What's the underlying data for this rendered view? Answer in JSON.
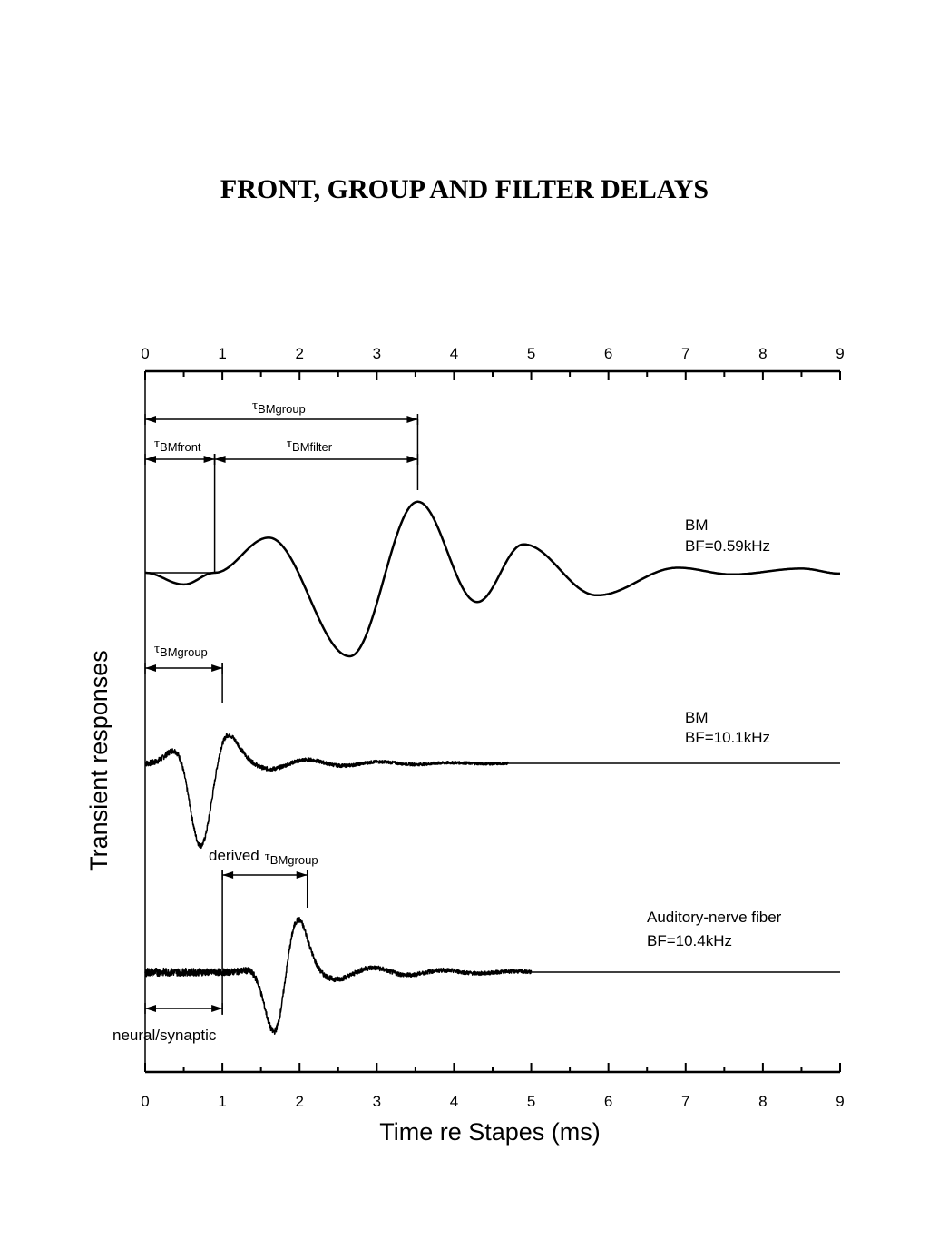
{
  "page": {
    "title": "FRONT, GROUP AND FILTER DELAYS"
  },
  "chart_data": {
    "type": "line",
    "title": "FRONT, GROUP AND FILTER DELAYS",
    "xlabel": "Time re Stapes (ms)",
    "ylabel": "Transient responses",
    "xlim": [
      0,
      9
    ],
    "x_ticks": [
      "0",
      "1",
      "2",
      "3",
      "4",
      "5",
      "6",
      "7",
      "8",
      "9"
    ],
    "grid": false,
    "series": [
      {
        "label_lines": [
          "BM",
          "BF=0.59kHz"
        ],
        "kind": "slow",
        "front_ms": 0.9,
        "peaks": [
          [
            0.0,
            0
          ],
          [
            0.5,
            -0.14
          ],
          [
            0.9,
            0
          ],
          [
            1.6,
            0.42
          ],
          [
            2.65,
            -1.0
          ],
          [
            3.53,
            0.85
          ],
          [
            4.3,
            -0.35
          ],
          [
            4.9,
            0.34
          ],
          [
            5.85,
            -0.27
          ],
          [
            6.9,
            0.06
          ],
          [
            7.6,
            -0.02
          ],
          [
            8.5,
            0.05
          ],
          [
            9.0,
            -0.01
          ]
        ]
      },
      {
        "label_lines": [
          "BM",
          "BF=10.1kHz"
        ],
        "kind": "fast",
        "freq_khz": 10.1,
        "envelope_peak_ms": 0.75,
        "noise_end_ms": 4.7
      },
      {
        "label_lines": [
          "Auditory-nerve fiber",
          "BF=10.4kHz"
        ],
        "kind": "fast",
        "freq_khz": 10.4,
        "envelope_peak_ms": 1.8,
        "noise_end_ms": 5.0
      }
    ],
    "annotations": [
      {
        "tau": "τ",
        "sub": "BMgroup",
        "from_ms": 0,
        "to_ms": 3.53,
        "trace": 0
      },
      {
        "tau": "τ",
        "sub": "BMfront",
        "from_ms": 0,
        "to_ms": 0.9,
        "trace": 0
      },
      {
        "tau": "τ",
        "sub": "BMfilter",
        "from_ms": 0.9,
        "to_ms": 3.53,
        "trace": 0
      },
      {
        "tau": "τ",
        "sub": "BMgroup",
        "from_ms": 0,
        "to_ms": 1.0,
        "trace": 1
      },
      {
        "prefix": "derived",
        "tau": "τ",
        "sub": "BMgroup",
        "from_ms": 1.0,
        "to_ms": 2.1,
        "trace": 2
      },
      {
        "text": "neural/synaptic",
        "from_ms": 0,
        "to_ms": 1.0,
        "trace": 2
      }
    ]
  }
}
